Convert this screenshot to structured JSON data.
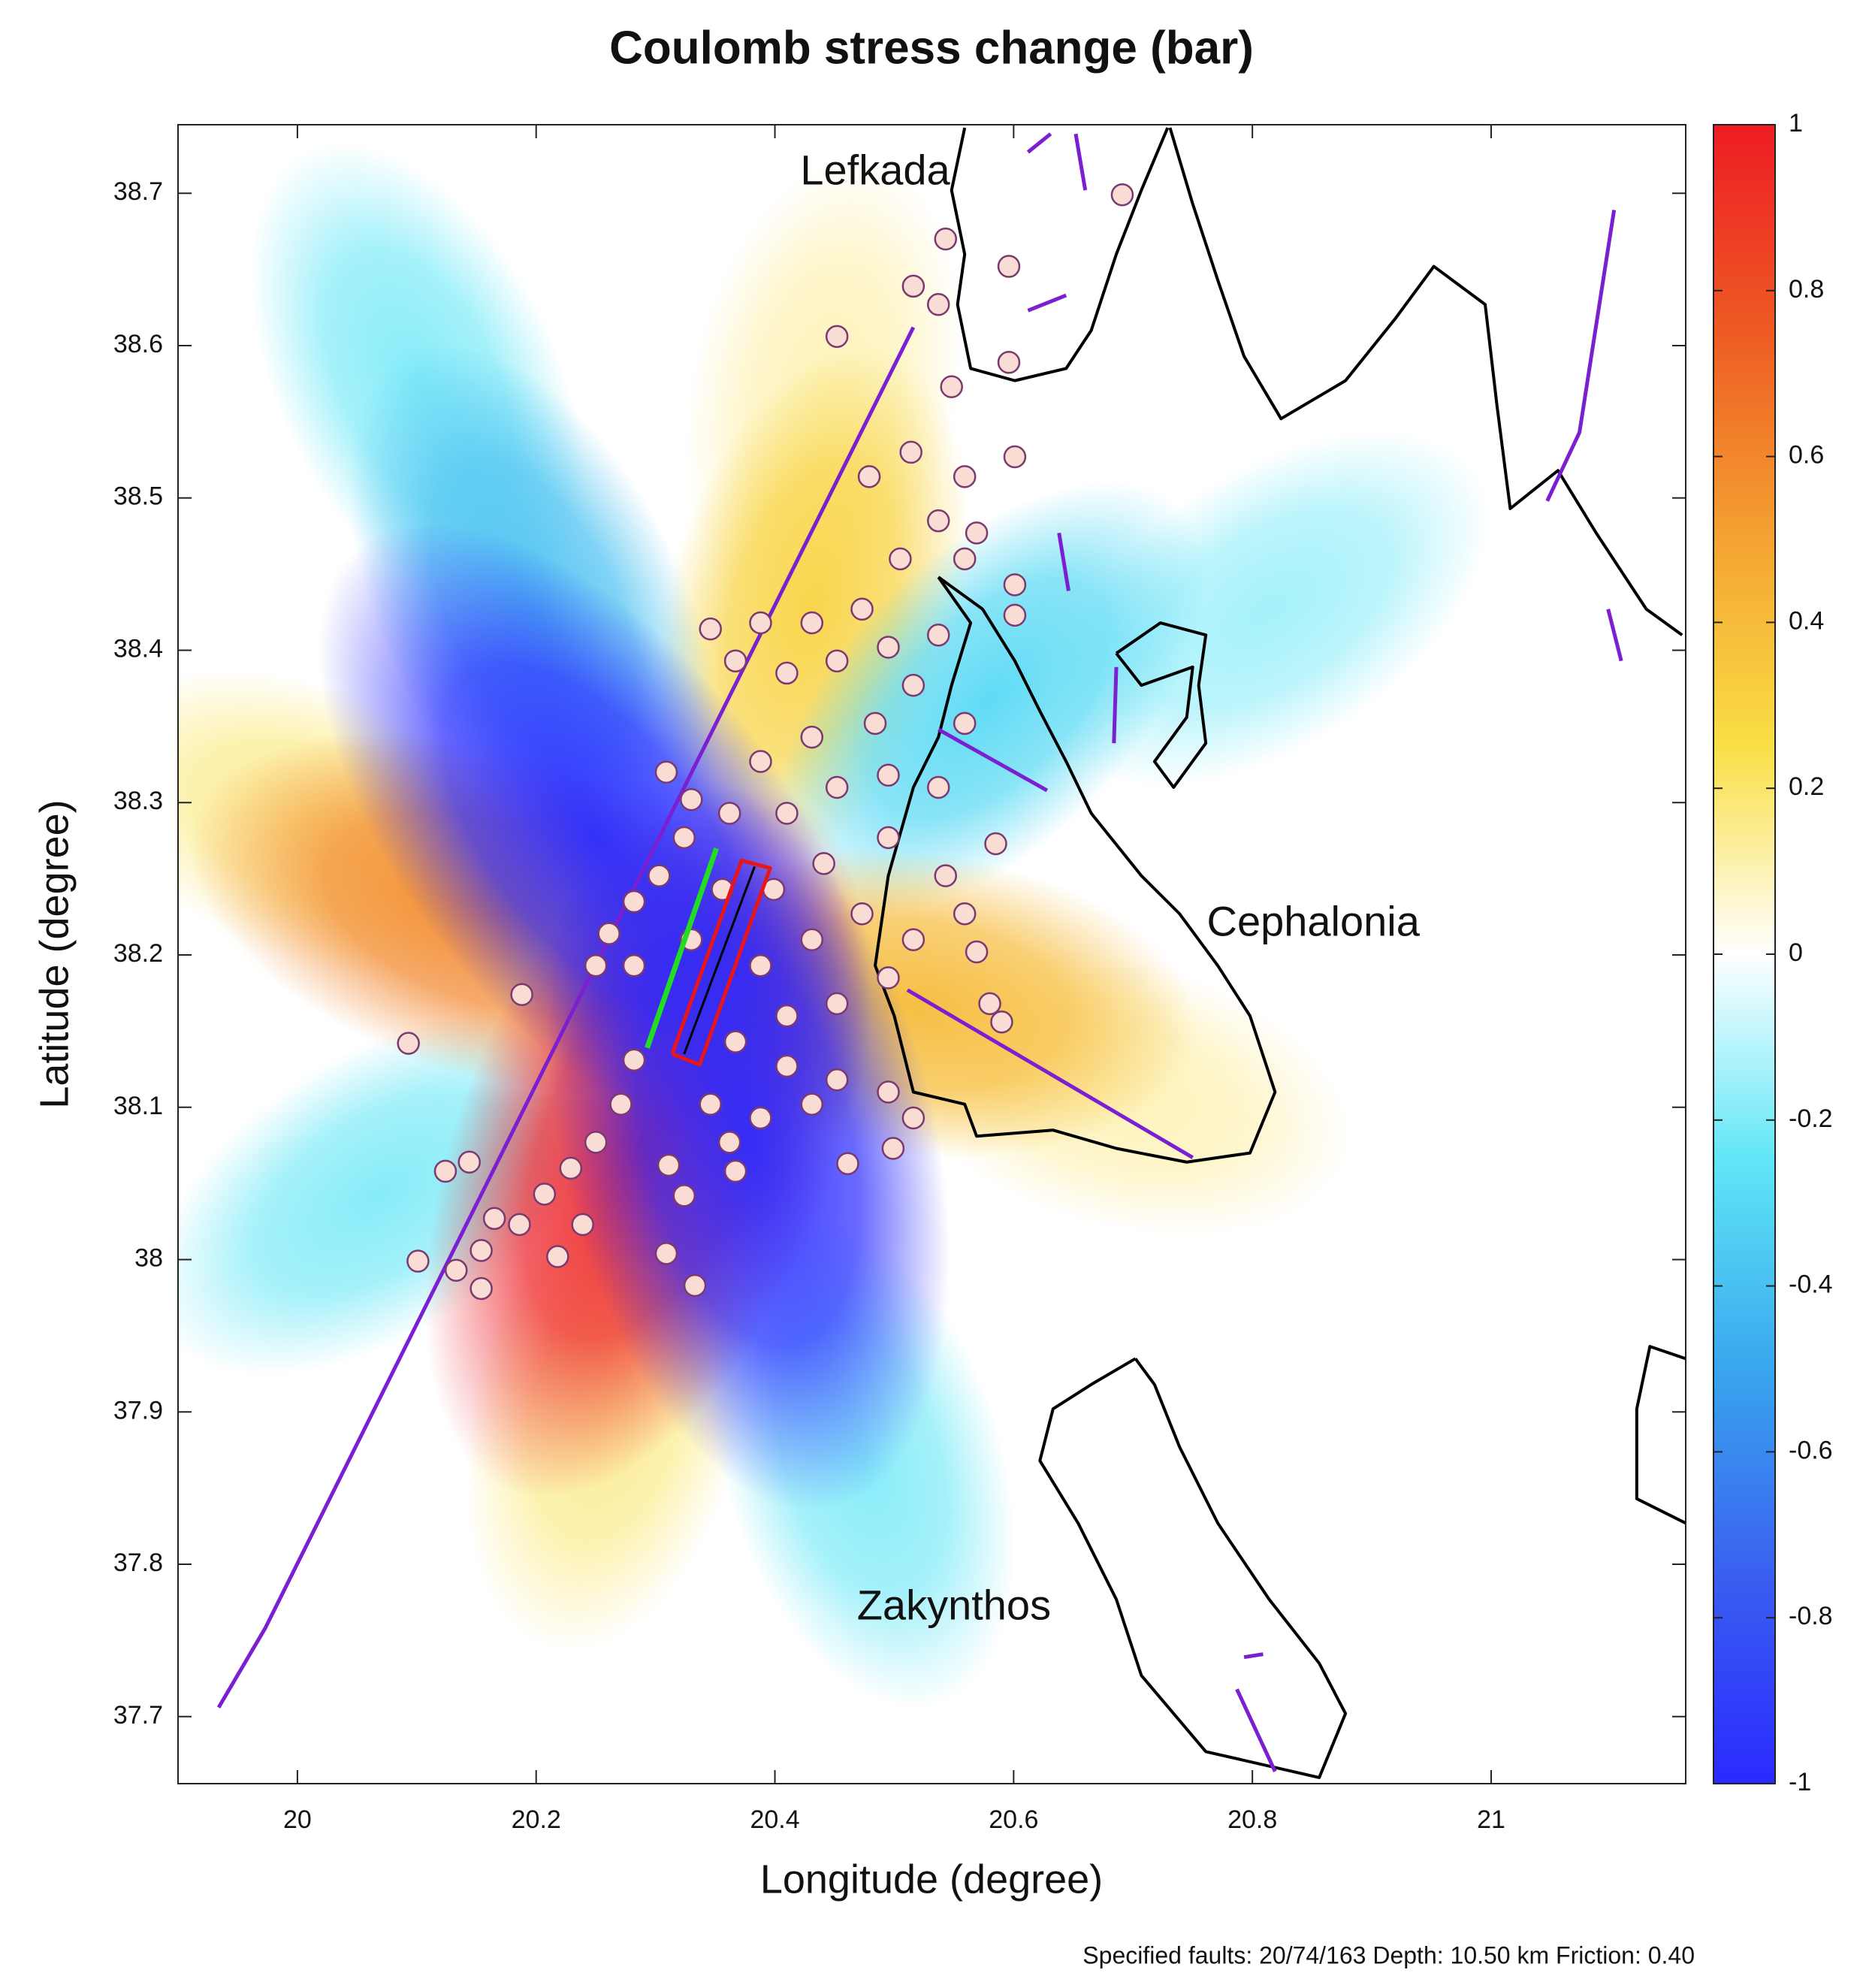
{
  "chart_data": {
    "type": "map",
    "title": "Coulomb stress change (bar)",
    "xlabel": "Longitude (degree)",
    "ylabel": "Latitude  (degree)",
    "footer": "Specified faults: 20/74/163  Depth: 10.50 km  Friction: 0.40",
    "xlim": [
      19.9,
      21.163
    ],
    "ylim": [
      37.656,
      38.745
    ],
    "xticks": [
      20,
      20.2,
      20.4,
      20.6,
      20.8,
      21
    ],
    "yticks": [
      37.7,
      37.8,
      37.9,
      38,
      38.1,
      38.2,
      38.3,
      38.4,
      38.5,
      38.6,
      38.7
    ],
    "colorbar": {
      "clim": [
        -1,
        1
      ],
      "ticks": [
        -1,
        -0.8,
        -0.6,
        -0.4,
        -0.2,
        0,
        0.2,
        0.4,
        0.6,
        0.8,
        1
      ],
      "colormap": [
        "#2a2aff",
        "#3a5ff0",
        "#39a6ee",
        "#5fe6f6",
        "#ffffff",
        "#f9df45",
        "#f4a332",
        "#ee5b23",
        "#ed1c24"
      ]
    },
    "stress_field": {
      "lon": [
        20.293,
        20.165,
        20.25,
        20.378,
        20.516,
        20.431,
        20.58,
        20.473,
        20.101,
        20.069,
        20.261,
        20.016,
        20.686,
        20.441,
        20.197,
        20.814
      ],
      "lat": [
        38.077,
        38.227,
        38.277,
        38.077,
        38.168,
        38.427,
        38.368,
        37.868,
        38.577,
        38.043,
        37.902,
        38.285,
        38.11,
        38.568,
        38.427,
        38.427
      ],
      "values": [
        1,
        0.6,
        -1,
        -1,
        0.4,
        0.3,
        -0.3,
        -0.2,
        -0.2,
        -0.2,
        0.15,
        0.15,
        0.1,
        0.1,
        -0.4,
        -0.15
      ]
    },
    "earthquakes": {
      "color": "#f9dcd4",
      "edge": "#7a3a70",
      "lon": [
        20.543,
        20.516,
        20.537,
        20.596,
        20.691,
        20.452,
        20.596,
        20.548,
        20.514,
        20.559,
        20.601,
        20.479,
        20.537,
        20.569,
        20.505,
        20.559,
        20.601,
        20.601,
        20.388,
        20.431,
        20.473,
        20.495,
        20.452,
        20.41,
        20.367,
        20.346,
        20.537,
        20.516,
        20.559,
        20.484,
        20.431,
        20.388,
        20.362,
        20.41,
        20.452,
        20.495,
        20.537,
        20.585,
        20.543,
        20.495,
        20.441,
        20.399,
        20.356,
        20.309,
        20.33,
        20.324,
        20.303,
        20.282,
        20.261,
        20.25,
        20.282,
        20.33,
        20.388,
        20.431,
        20.473,
        20.516,
        20.559,
        20.569,
        20.58,
        20.59,
        20.495,
        20.452,
        20.41,
        20.367,
        20.41,
        20.452,
        20.495,
        20.516,
        20.499,
        20.431,
        20.388,
        20.362,
        20.346,
        20.461,
        20.367,
        20.188,
        20.093,
        20.282,
        20.271,
        20.25,
        20.229,
        20.207,
        20.186,
        20.165,
        20.154,
        20.133,
        20.154,
        20.101,
        20.124,
        20.144,
        20.218,
        20.239,
        20.309,
        20.333,
        20.324,
        20.311
      ],
      "lat": [
        38.67,
        38.639,
        38.627,
        38.652,
        38.699,
        38.606,
        38.589,
        38.573,
        38.53,
        38.514,
        38.527,
        38.514,
        38.485,
        38.477,
        38.46,
        38.46,
        38.443,
        38.423,
        38.418,
        38.418,
        38.427,
        38.402,
        38.393,
        38.385,
        38.393,
        38.414,
        38.41,
        38.377,
        38.352,
        38.352,
        38.343,
        38.327,
        38.293,
        38.293,
        38.31,
        38.318,
        38.31,
        38.273,
        38.252,
        38.277,
        38.26,
        38.243,
        38.243,
        38.32,
        38.302,
        38.277,
        38.252,
        38.235,
        38.214,
        38.193,
        38.193,
        38.21,
        38.193,
        38.21,
        38.227,
        38.21,
        38.227,
        38.202,
        38.168,
        38.156,
        38.185,
        38.168,
        38.16,
        38.143,
        38.127,
        38.118,
        38.11,
        38.093,
        38.073,
        38.102,
        38.093,
        38.077,
        38.102,
        38.063,
        38.058,
        38.174,
        38.142,
        38.131,
        38.102,
        38.077,
        38.06,
        38.043,
        38.023,
        38.027,
        38.006,
        37.993,
        37.981,
        37.999,
        38.058,
        38.064,
        38.002,
        38.023,
        38.004,
        37.983,
        38.042,
        38.062
      ]
    },
    "faults": [
      {
        "color": "#7a1fd1",
        "lon": [
          19.934,
          19.973,
          20.516
        ],
        "lat": [
          37.706,
          37.758,
          38.612
        ]
      },
      {
        "color": "#7a1fd1",
        "lon": [
          20.75,
          20.511
        ],
        "lat": [
          38.067,
          38.177
        ]
      },
      {
        "color": "#7a1fd1",
        "lon": [
          20.537,
          20.628
        ],
        "lat": [
          38.348,
          38.308
        ]
      },
      {
        "color": "#7a1fd1",
        "lon": [
          20.638,
          20.646
        ],
        "lat": [
          38.477,
          38.439
        ]
      },
      {
        "color": "#7a1fd1",
        "lon": [
          21.103,
          21.074,
          21.047
        ],
        "lat": [
          38.689,
          38.543,
          38.498
        ]
      },
      {
        "color": "#7a1fd1",
        "lon": [
          21.098,
          21.109
        ],
        "lat": [
          38.427,
          38.393
        ]
      },
      {
        "color": "#7a1fd1",
        "lon": [
          20.612,
          20.644
        ],
        "lat": [
          38.623,
          38.633
        ]
      },
      {
        "color": "#7a1fd1",
        "lon": [
          20.686,
          20.684
        ],
        "lat": [
          38.389,
          38.339
        ]
      },
      {
        "color": "#7a1fd1",
        "lon": [
          20.612,
          20.631
        ],
        "lat": [
          38.727,
          38.739
        ]
      },
      {
        "color": "#7a1fd1",
        "lon": [
          20.652,
          20.66
        ],
        "lat": [
          38.739,
          38.702
        ]
      },
      {
        "color": "#7a1fd1",
        "lon": [
          20.787,
          20.819
        ],
        "lat": [
          37.718,
          37.664
        ]
      },
      {
        "color": "#7a1fd1",
        "lon": [
          20.793,
          20.809
        ],
        "lat": [
          37.739,
          37.741
        ]
      }
    ],
    "coastlines": [
      {
        "color": "#000000",
        "lon": [
          20.537,
          20.564,
          20.548,
          20.537,
          20.516,
          20.495,
          20.484,
          20.5,
          20.516,
          20.559,
          20.569,
          20.633,
          20.686,
          20.745,
          20.798,
          20.819,
          20.798,
          20.771,
          20.739,
          20.707,
          20.665,
          20.644,
          20.622,
          20.601,
          20.574,
          20.537
        ],
        "lat": [
          38.448,
          38.418,
          38.377,
          38.343,
          38.31,
          38.252,
          38.193,
          38.16,
          38.11,
          38.102,
          38.081,
          38.085,
          38.073,
          38.064,
          38.07,
          38.11,
          38.16,
          38.193,
          38.227,
          38.252,
          38.293,
          38.327,
          38.36,
          38.393,
          38.427,
          38.448
        ]
      },
      {
        "color": "#000000",
        "lon": [
          20.686,
          20.707,
          20.75,
          20.745,
          20.718,
          20.734,
          20.761,
          20.755,
          20.761,
          20.723,
          20.686
        ],
        "lat": [
          38.398,
          38.377,
          38.389,
          38.356,
          38.327,
          38.31,
          38.339,
          38.377,
          38.41,
          38.418,
          38.398
        ]
      },
      {
        "color": "#000000",
        "lon": [
          20.559,
          20.548,
          20.559,
          20.553,
          20.564,
          20.601,
          20.644,
          20.665,
          20.686,
          20.707,
          20.729
        ],
        "lat": [
          38.743,
          38.702,
          38.66,
          38.627,
          38.585,
          38.577,
          38.585,
          38.61,
          38.66,
          38.702,
          38.743
        ]
      },
      {
        "color": "#000000",
        "lon": [
          20.731,
          20.75,
          20.771,
          20.793,
          20.824,
          20.878,
          20.92,
          20.952,
          20.995,
          21.005,
          21.016,
          21.056,
          21.088,
          21.13,
          21.16
        ],
        "lat": [
          38.743,
          38.693,
          38.643,
          38.593,
          38.552,
          38.577,
          38.618,
          38.652,
          38.627,
          38.56,
          38.493,
          38.518,
          38.477,
          38.427,
          38.41
        ]
      },
      {
        "color": "#000000",
        "lon": [
          20.702,
          20.665,
          20.633,
          20.622,
          20.654,
          20.686,
          20.707,
          20.761,
          20.856,
          20.878,
          20.856,
          20.814,
          20.771,
          20.739,
          20.718,
          20.702
        ],
        "lat": [
          37.935,
          37.918,
          37.902,
          37.868,
          37.827,
          37.777,
          37.727,
          37.677,
          37.66,
          37.702,
          37.735,
          37.777,
          37.827,
          37.877,
          37.918,
          37.935
        ]
      },
      {
        "color": "#000000",
        "lon": [
          21.163,
          21.133,
          21.122,
          21.122,
          21.163
        ],
        "lat": [
          37.935,
          37.943,
          37.902,
          37.843,
          37.827
        ]
      }
    ],
    "rupture_trace": {
      "color": "#22dd22",
      "lon": [
        20.293,
        20.351
      ],
      "lat": [
        38.139,
        38.27
      ]
    },
    "fault_plane": {
      "color": "#e8151b",
      "lon": [
        20.314,
        20.372,
        20.396,
        20.337,
        20.314
      ],
      "lat": [
        38.135,
        38.262,
        38.257,
        38.128,
        38.135
      ]
    },
    "slip_line": {
      "color": "#000000",
      "lon": [
        20.324,
        20.383
      ],
      "lat": [
        38.135,
        38.258
      ]
    },
    "annotations": [
      {
        "text": "Lefkada",
        "lon": 20.484,
        "lat": 38.713
      },
      {
        "text": "Cephalonia",
        "lon": 20.851,
        "lat": 38.22
      },
      {
        "text": "Zakynthos",
        "lon": 20.55,
        "lat": 37.771
      }
    ]
  }
}
